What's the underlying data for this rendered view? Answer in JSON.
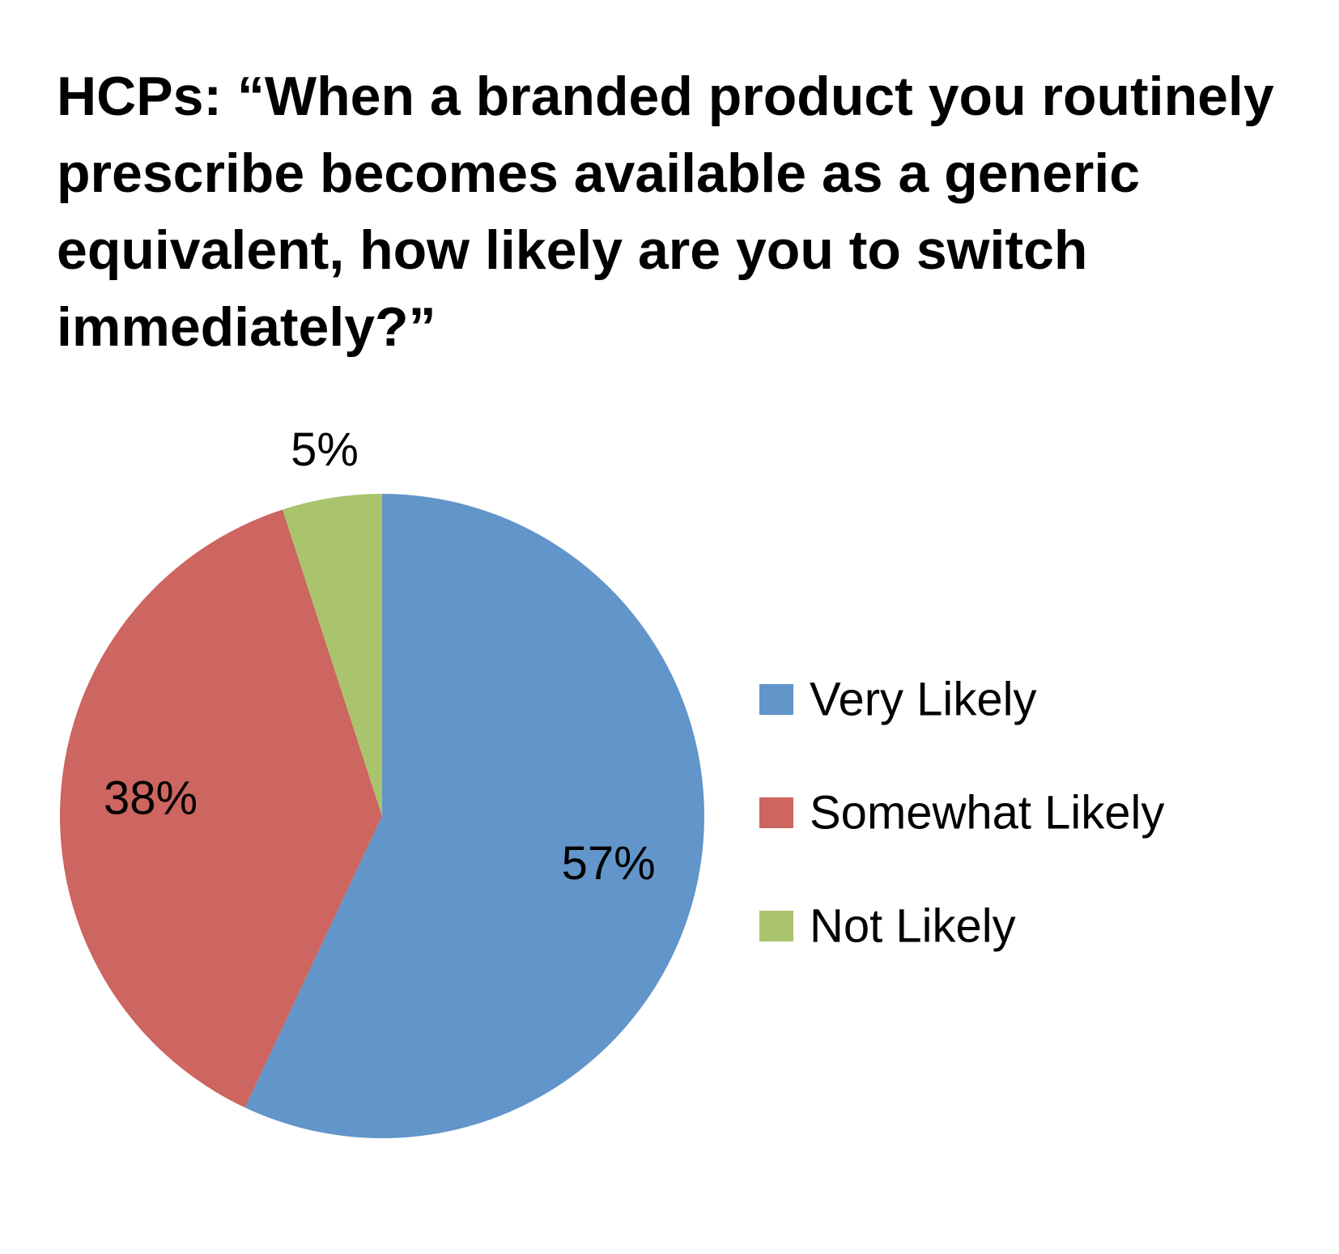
{
  "chart_data": {
    "type": "pie",
    "title": "HCPs:  “When a branded product you routinely prescribe becomes available as a generic equivalent, how likely are you to switch immediately?”",
    "categories": [
      "Very Likely",
      "Somewhat Likely",
      "Not Likely"
    ],
    "values": [
      57,
      38,
      5
    ],
    "value_labels": [
      "57%",
      "38%",
      "5%"
    ],
    "colors": [
      "#6295c9",
      "#cd6560",
      "#a9c46c"
    ],
    "legend": "right"
  }
}
